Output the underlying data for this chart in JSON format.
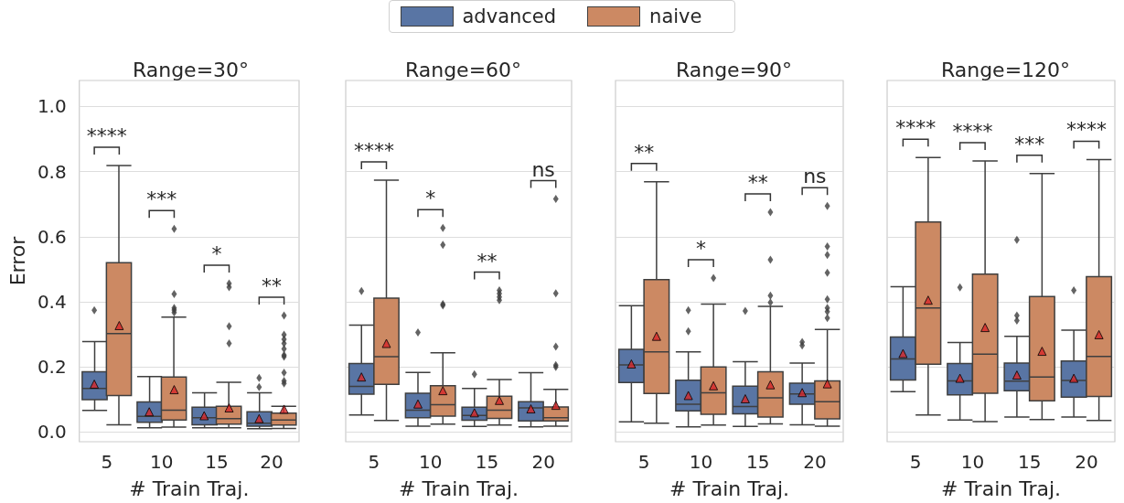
{
  "chart_data": [
    {
      "type": "box",
      "title": "Range=30°",
      "xlabel": "# Train Traj.",
      "ylabel": "Error",
      "categories": [
        "5",
        "10",
        "15",
        "20"
      ],
      "ylim": [
        -0.03,
        1.08
      ],
      "yticks": [
        {
          "value": 0,
          "label": "0.0"
        },
        0.2,
        0.4,
        0.6,
        0.8,
        {
          "value": 1,
          "label": "1.0"
        }
      ],
      "grid": "y",
      "legend": "top",
      "series": [
        {
          "name": "advanced",
          "color": "#5975a4",
          "boxes": [
            {
              "low": 0.066,
              "q1": 0.099,
              "median": 0.134,
              "q3": 0.185,
              "high": 0.278,
              "mean": 0.147,
              "outliers": [
                0.374
              ]
            },
            {
              "low": 0.013,
              "q1": 0.03,
              "median": 0.048,
              "q3": 0.092,
              "high": 0.17,
              "mean": 0.062
            },
            {
              "low": 0.013,
              "q1": 0.022,
              "median": 0.044,
              "q3": 0.076,
              "high": 0.12,
              "mean": 0.05
            },
            {
              "low": 0.01,
              "q1": 0.018,
              "median": 0.027,
              "q3": 0.062,
              "high": 0.12,
              "mean": 0.041,
              "outliers": [
                0.166,
                0.138
              ]
            }
          ]
        },
        {
          "name": "naive",
          "color": "#cc8963",
          "boxes": [
            {
              "low": 0.022,
              "q1": 0.112,
              "median": 0.302,
              "q3": 0.52,
              "high": 0.819,
              "mean": 0.327
            },
            {
              "low": 0.015,
              "q1": 0.037,
              "median": 0.067,
              "q3": 0.169,
              "high": 0.353,
              "mean": 0.13,
              "outliers": [
                0.624,
                0.424,
                0.381,
                0.375,
                0.367
              ]
            },
            {
              "low": 0.013,
              "q1": 0.024,
              "median": 0.041,
              "q3": 0.079,
              "high": 0.153,
              "mean": 0.074,
              "outliers": [
                0.456,
                0.445,
                0.325,
                0.272
              ]
            },
            {
              "low": 0.011,
              "q1": 0.021,
              "median": 0.037,
              "q3": 0.058,
              "high": 0.079,
              "mean": 0.07,
              "outliers": [
                0.358,
                0.299,
                0.285,
                0.272,
                0.255,
                0.236,
                0.231,
                0.182,
                0.157,
                0.149
              ]
            }
          ]
        }
      ],
      "annotations": [
        "****",
        "***",
        "*",
        "**"
      ]
    },
    {
      "type": "box",
      "title": "Range=60°",
      "xlabel": "# Train Traj.",
      "categories": [
        "5",
        "10",
        "15",
        "20"
      ],
      "ylim": [
        -0.03,
        1.08
      ],
      "yticks": [
        0,
        0.2,
        0.4,
        0.6,
        0.8,
        1
      ],
      "grid": "y",
      "tick_labels": "x",
      "series": [
        {
          "color": "#5975a4",
          "boxes": [
            {
              "low": 0.052,
              "q1": 0.116,
              "median": 0.14,
              "q3": 0.21,
              "high": 0.328,
              "mean": 0.169,
              "outliers": [
                0.433
              ]
            },
            {
              "low": 0.018,
              "q1": 0.044,
              "median": 0.067,
              "q3": 0.119,
              "high": 0.183,
              "mean": 0.086,
              "outliers": [
                0.306
              ]
            },
            {
              "low": 0.017,
              "q1": 0.036,
              "median": 0.051,
              "q3": 0.076,
              "high": 0.134,
              "mean": 0.059,
              "outliers": [
                0.177
              ]
            },
            {
              "low": 0.016,
              "q1": 0.034,
              "median": 0.074,
              "q3": 0.093,
              "high": 0.182,
              "mean": 0.071
            }
          ]
        },
        {
          "color": "#cc8963",
          "boxes": [
            {
              "low": 0.035,
              "q1": 0.146,
              "median": 0.231,
              "q3": 0.411,
              "high": 0.774,
              "mean": 0.272
            },
            {
              "low": 0.024,
              "q1": 0.049,
              "median": 0.084,
              "q3": 0.142,
              "high": 0.243,
              "mean": 0.127,
              "outliers": [
                0.627,
                0.575,
                0.393,
                0.389
              ]
            },
            {
              "low": 0.021,
              "q1": 0.042,
              "median": 0.067,
              "q3": 0.11,
              "high": 0.161,
              "mean": 0.097,
              "outliers": [
                0.435,
                0.425,
                0.415,
                0.405
              ]
            },
            {
              "low": 0.018,
              "q1": 0.034,
              "median": 0.044,
              "q3": 0.077,
              "high": 0.131,
              "mean": 0.082,
              "outliers": [
                0.716,
                0.426,
                0.262,
                0.205,
                0.2
              ]
            }
          ]
        }
      ],
      "annotations": [
        "****",
        "*",
        "**",
        "ns"
      ]
    },
    {
      "type": "box",
      "title": "Range=90°",
      "xlabel": "# Train Traj.",
      "categories": [
        "5",
        "10",
        "15",
        "20"
      ],
      "ylim": [
        -0.03,
        1.08
      ],
      "yticks": [
        0,
        0.2,
        0.4,
        0.6,
        0.8,
        1
      ],
      "grid": "y",
      "tick_labels": "x",
      "series": [
        {
          "color": "#5975a4",
          "boxes": [
            {
              "low": 0.031,
              "q1": 0.152,
              "median": 0.206,
              "q3": 0.254,
              "high": 0.388,
              "mean": 0.209
            },
            {
              "low": 0.016,
              "q1": 0.065,
              "median": 0.085,
              "q3": 0.159,
              "high": 0.246,
              "mean": 0.112,
              "outliers": [
                0.374,
                0.309
              ]
            },
            {
              "low": 0.017,
              "q1": 0.056,
              "median": 0.078,
              "q3": 0.141,
              "high": 0.216,
              "mean": 0.102,
              "outliers": [
                0.372
              ]
            },
            {
              "low": 0.022,
              "q1": 0.085,
              "median": 0.117,
              "q3": 0.15,
              "high": 0.212,
              "mean": 0.121,
              "outliers": [
                0.276,
                0.266
              ]
            }
          ]
        },
        {
          "color": "#cc8963",
          "boxes": [
            {
              "low": 0.027,
              "q1": 0.118,
              "median": 0.246,
              "q3": 0.468,
              "high": 0.769,
              "mean": 0.294
            },
            {
              "low": 0.021,
              "q1": 0.054,
              "median": 0.12,
              "q3": 0.2,
              "high": 0.393,
              "mean": 0.142,
              "outliers": [
                0.473
              ]
            },
            {
              "low": 0.025,
              "q1": 0.046,
              "median": 0.105,
              "q3": 0.185,
              "high": 0.386,
              "mean": 0.145,
              "outliers": [
                0.675,
                0.529,
                0.419,
                0.398
              ]
            },
            {
              "low": 0.018,
              "q1": 0.04,
              "median": 0.093,
              "q3": 0.157,
              "high": 0.315,
              "mean": 0.148,
              "outliers": [
                0.694,
                0.57,
                0.544,
                0.489,
                0.408,
                0.381,
                0.37,
                0.35
              ]
            }
          ]
        }
      ],
      "annotations": [
        "**",
        "*",
        "**",
        "ns"
      ]
    },
    {
      "type": "box",
      "title": "Range=120°",
      "xlabel": "# Train Traj.",
      "categories": [
        "5",
        "10",
        "15",
        "20"
      ],
      "ylim": [
        -0.03,
        1.08
      ],
      "yticks": [
        0,
        0.2,
        0.4,
        0.6,
        0.8,
        1
      ],
      "grid": "y",
      "tick_labels": "x",
      "series": [
        {
          "color": "#5975a4",
          "boxes": [
            {
              "low": 0.124,
              "q1": 0.16,
              "median": 0.224,
              "q3": 0.292,
              "high": 0.446,
              "mean": 0.241
            },
            {
              "low": 0.037,
              "q1": 0.114,
              "median": 0.157,
              "q3": 0.21,
              "high": 0.275,
              "mean": 0.165,
              "outliers": [
                0.444
              ]
            },
            {
              "low": 0.046,
              "q1": 0.127,
              "median": 0.156,
              "q3": 0.212,
              "high": 0.294,
              "mean": 0.175,
              "outliers": [
                0.59,
                0.358,
                0.342
              ]
            },
            {
              "low": 0.046,
              "q1": 0.107,
              "median": 0.158,
              "q3": 0.218,
              "high": 0.313,
              "mean": 0.165,
              "outliers": [
                0.435
              ]
            }
          ]
        },
        {
          "color": "#cc8963",
          "boxes": [
            {
              "low": 0.052,
              "q1": 0.208,
              "median": 0.381,
              "q3": 0.645,
              "high": 0.843,
              "mean": 0.405
            },
            {
              "low": 0.032,
              "q1": 0.119,
              "median": 0.239,
              "q3": 0.485,
              "high": 0.833,
              "mean": 0.321
            },
            {
              "low": 0.038,
              "q1": 0.096,
              "median": 0.169,
              "q3": 0.416,
              "high": 0.794,
              "mean": 0.248
            },
            {
              "low": 0.035,
              "q1": 0.109,
              "median": 0.232,
              "q3": 0.477,
              "high": 0.837,
              "mean": 0.299
            }
          ]
        }
      ],
      "annotations": [
        "****",
        "****",
        "***",
        "****"
      ]
    }
  ]
}
